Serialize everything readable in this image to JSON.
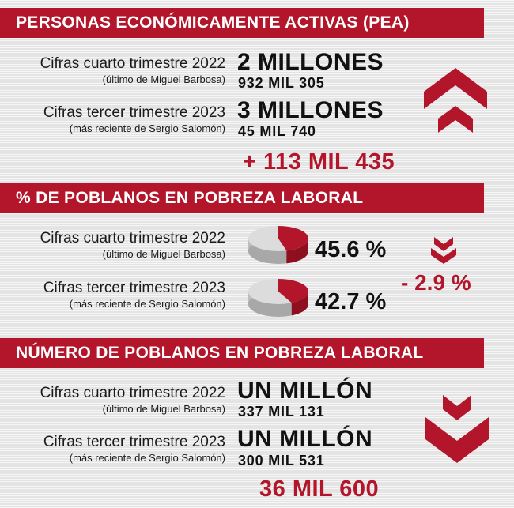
{
  "colors": {
    "accent": "#b3162b",
    "text": "#1a1a1a",
    "pie_side": "#bdbdbd",
    "pie_top": "#d9d9d9"
  },
  "sections": [
    {
      "title": "PERSONAS ECONÓMICAMENTE ACTIVAS (PEA)",
      "rows": [
        {
          "label": "Cifras cuarto trimestre 2022",
          "sublabel": "(último de Miguel Barbosa)",
          "value": "2 MILLONES",
          "subvalue": "932 MIL 305"
        },
        {
          "label": "Cifras tercer trimestre 2023",
          "sublabel": "(más reciente de Sergio Salomón)",
          "value": "3 MILLONES",
          "subvalue": "45 MIL 740"
        }
      ],
      "change": "+ 113 MIL 435",
      "indicator_icon": "double-chevron-up-icon"
    },
    {
      "title": "% DE POBLANOS EN POBREZA LABORAL",
      "rows": [
        {
          "label": "Cifras cuarto trimestre 2022",
          "sublabel": "(último de Miguel Barbosa)",
          "value": "45.6 %",
          "percent": 45.6
        },
        {
          "label": "Cifras tercer trimestre 2023",
          "sublabel": "(más reciente de Sergio Salomón)",
          "value": "42.7 %",
          "percent": 42.7
        }
      ],
      "change": "- 2.9 %",
      "indicator_icon": "double-chevron-down-icon"
    },
    {
      "title": "NÚMERO DE POBLANOS EN POBREZA LABORAL",
      "rows": [
        {
          "label": "Cifras cuarto trimestre 2022",
          "sublabel": "(último de Miguel Barbosa)",
          "value": "UN MILLÓN",
          "subvalue": "337 MIL 131"
        },
        {
          "label": "Cifras tercer trimestre 2023",
          "sublabel": "(más reciente de Sergio Salomón)",
          "value": "UN MILLÓN",
          "subvalue": "300 MIL 531"
        }
      ],
      "change": "36 MIL 600",
      "indicator_icon": "double-chevron-down-icon"
    }
  ]
}
